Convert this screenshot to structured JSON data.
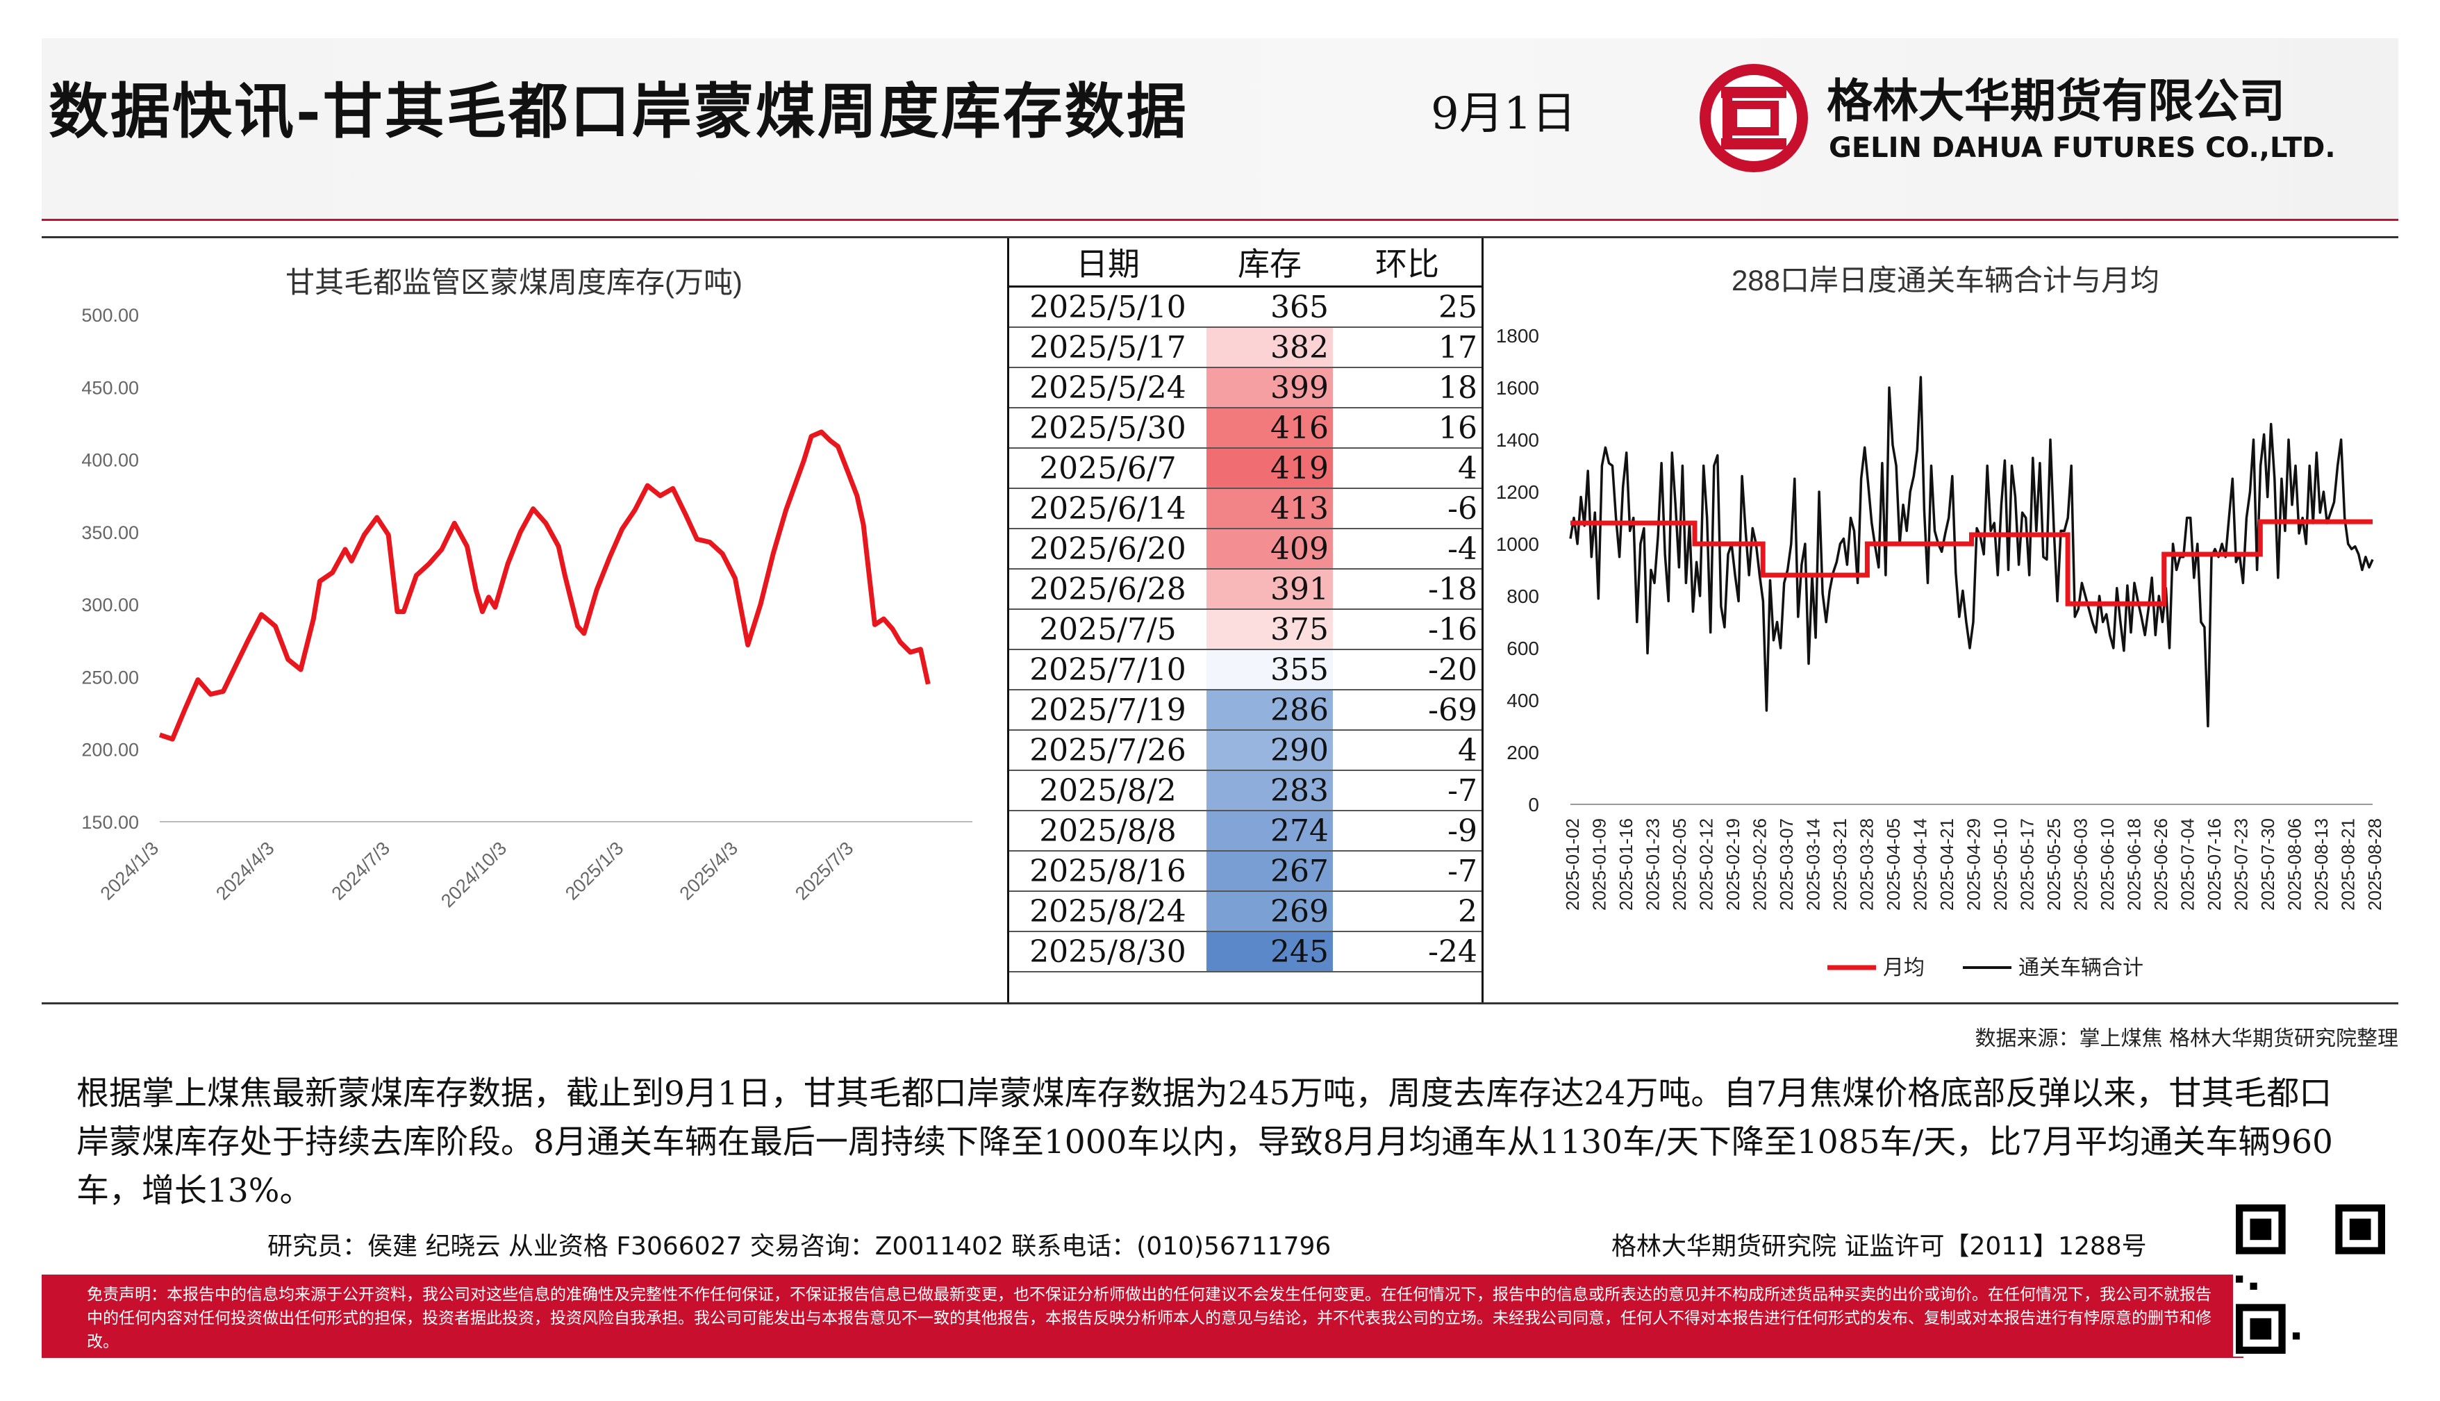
{
  "header": {
    "title": "数据快讯-甘其毛都口岸蒙煤周度库存数据",
    "date": "9月1日",
    "company_cn": "格林大华期货有限公司",
    "company_en": "GELIN DAHUA FUTURES CO.,LTD.",
    "brand_color": "#c8102e"
  },
  "left_chart": {
    "chart_data": {
      "type": "line",
      "title": "甘其毛都监管区蒙煤周度库存(万吨)",
      "y_ticks": [
        "500.00",
        "450.00",
        "400.00",
        "350.00",
        "300.00",
        "250.00",
        "200.00",
        "150.00"
      ],
      "ylim": [
        150,
        500
      ],
      "x_ticks": [
        "2024/1/3",
        "2024/4/3",
        "2024/7/3",
        "2024/10/3",
        "2025/1/3",
        "2025/4/3",
        "2025/7/3"
      ],
      "x_range": [
        "2024-01-03",
        "2025-09-01"
      ],
      "series": [
        {
          "color": "#e8171d",
          "points": [
            [
              "2024-01-03",
              210
            ],
            [
              "2024-01-13",
              207
            ],
            [
              "2024-01-23",
              228
            ],
            [
              "2024-02-02",
              248
            ],
            [
              "2024-02-12",
              238
            ],
            [
              "2024-02-22",
              240
            ],
            [
              "2024-03-03",
              258
            ],
            [
              "2024-03-13",
              276
            ],
            [
              "2024-03-23",
              293
            ],
            [
              "2024-04-03",
              285
            ],
            [
              "2024-04-13",
              262
            ],
            [
              "2024-04-23",
              255
            ],
            [
              "2024-05-03",
              290
            ],
            [
              "2024-05-08",
              316
            ],
            [
              "2024-05-18",
              322
            ],
            [
              "2024-05-28",
              338
            ],
            [
              "2024-06-02",
              330
            ],
            [
              "2024-06-12",
              348
            ],
            [
              "2024-06-22",
              360
            ],
            [
              "2024-07-01",
              348
            ],
            [
              "2024-07-08",
              295
            ],
            [
              "2024-07-13",
              295
            ],
            [
              "2024-07-23",
              320
            ],
            [
              "2024-08-02",
              328
            ],
            [
              "2024-08-12",
              338
            ],
            [
              "2024-08-22",
              356
            ],
            [
              "2024-09-01",
              340
            ],
            [
              "2024-09-08",
              310
            ],
            [
              "2024-09-13",
              295
            ],
            [
              "2024-09-18",
              305
            ],
            [
              "2024-09-23",
              298
            ],
            [
              "2024-10-03",
              328
            ],
            [
              "2024-10-13",
              350
            ],
            [
              "2024-10-23",
              366
            ],
            [
              "2024-11-02",
              356
            ],
            [
              "2024-11-12",
              340
            ],
            [
              "2024-11-17",
              320
            ],
            [
              "2024-11-27",
              285
            ],
            [
              "2024-12-02",
              280
            ],
            [
              "2024-12-12",
              310
            ],
            [
              "2024-12-22",
              332
            ],
            [
              "2025-01-01",
              352
            ],
            [
              "2025-01-11",
              365
            ],
            [
              "2025-01-21",
              382
            ],
            [
              "2025-01-31",
              375
            ],
            [
              "2025-02-10",
              380
            ],
            [
              "2025-02-20",
              362
            ],
            [
              "2025-03-01",
              345
            ],
            [
              "2025-03-11",
              343
            ],
            [
              "2025-03-21",
              335
            ],
            [
              "2025-03-31",
              318
            ],
            [
              "2025-04-10",
              272
            ],
            [
              "2025-04-20",
              300
            ],
            [
              "2025-04-30",
              335
            ],
            [
              "2025-05-10",
              365
            ],
            [
              "2025-05-17",
              382
            ],
            [
              "2025-05-24",
              399
            ],
            [
              "2025-05-30",
              416
            ],
            [
              "2025-06-07",
              419
            ],
            [
              "2025-06-14",
              413
            ],
            [
              "2025-06-20",
              409
            ],
            [
              "2025-06-28",
              391
            ],
            [
              "2025-07-05",
              375
            ],
            [
              "2025-07-10",
              355
            ],
            [
              "2025-07-19",
              286
            ],
            [
              "2025-07-26",
              290
            ],
            [
              "2025-08-02",
              283
            ],
            [
              "2025-08-08",
              274
            ],
            [
              "2025-08-16",
              267
            ],
            [
              "2025-08-24",
              269
            ],
            [
              "2025-08-30",
              245
            ]
          ]
        }
      ]
    }
  },
  "table": {
    "headers": [
      "日期",
      "库存",
      "环比"
    ],
    "rows": [
      {
        "date": "2025/5/10",
        "stock": "365",
        "chg": "25",
        "fill": "#ffffff"
      },
      {
        "date": "2025/5/17",
        "stock": "382",
        "chg": "17",
        "fill": "#fbd3d4"
      },
      {
        "date": "2025/5/24",
        "stock": "399",
        "chg": "18",
        "fill": "#f59fa2"
      },
      {
        "date": "2025/5/30",
        "stock": "416",
        "chg": "16",
        "fill": "#f2797c"
      },
      {
        "date": "2025/6/7",
        "stock": "419",
        "chg": "4",
        "fill": "#f06e71"
      },
      {
        "date": "2025/6/14",
        "stock": "413",
        "chg": "-6",
        "fill": "#f28487"
      },
      {
        "date": "2025/6/20",
        "stock": "409",
        "chg": "-4",
        "fill": "#f38f92"
      },
      {
        "date": "2025/6/28",
        "stock": "391",
        "chg": "-18",
        "fill": "#f8b8ba"
      },
      {
        "date": "2025/7/5",
        "stock": "375",
        "chg": "-16",
        "fill": "#fcdedf"
      },
      {
        "date": "2025/7/10",
        "stock": "355",
        "chg": "-20",
        "fill": "#f3f6fc"
      },
      {
        "date": "2025/7/19",
        "stock": "286",
        "chg": "-69",
        "fill": "#93b1dd"
      },
      {
        "date": "2025/7/26",
        "stock": "290",
        "chg": "4",
        "fill": "#98b5df"
      },
      {
        "date": "2025/8/2",
        "stock": "283",
        "chg": "-7",
        "fill": "#8eadda"
      },
      {
        "date": "2025/8/8",
        "stock": "274",
        "chg": "-9",
        "fill": "#82a4d6"
      },
      {
        "date": "2025/8/16",
        "stock": "267",
        "chg": "-7",
        "fill": "#799ed3"
      },
      {
        "date": "2025/8/24",
        "stock": "269",
        "chg": "2",
        "fill": "#7ba0d4"
      },
      {
        "date": "2025/8/30",
        "stock": "245",
        "chg": "-24",
        "fill": "#5b88c8"
      }
    ]
  },
  "right_chart": {
    "chart_data": {
      "type": "line",
      "title": "288口岸日度通关车辆合计与月均",
      "y_ticks": [
        "1800",
        "1600",
        "1400",
        "1200",
        "1000",
        "800",
        "600",
        "400",
        "200",
        "0"
      ],
      "ylim": [
        0,
        1800
      ],
      "x_ticks": [
        "2025-01-02",
        "2025-01-09",
        "2025-01-16",
        "2025-01-23",
        "2025-02-05",
        "2025-02-12",
        "2025-02-19",
        "2025-02-26",
        "2025-03-07",
        "2025-03-14",
        "2025-03-21",
        "2025-03-28",
        "2025-04-05",
        "2025-04-14",
        "2025-04-21",
        "2025-04-29",
        "2025-05-10",
        "2025-05-17",
        "2025-05-25",
        "2025-06-03",
        "2025-06-10",
        "2025-06-18",
        "2025-06-26",
        "2025-07-04",
        "2025-07-16",
        "2025-07-23",
        "2025-07-30",
        "2025-08-06",
        "2025-08-13",
        "2025-08-21",
        "2025-08-28"
      ],
      "legend": [
        "月均",
        "通关车辆合计"
      ],
      "legend_position": "bottom",
      "monthly_avg": {
        "color": "#e8171d",
        "segments": [
          [
            0,
            0.155,
            1080
          ],
          [
            0.155,
            0.24,
            1000
          ],
          [
            0.24,
            0.37,
            880
          ],
          [
            0.37,
            0.5,
            1000
          ],
          [
            0.5,
            0.62,
            1035
          ],
          [
            0.62,
            0.74,
            770
          ],
          [
            0.74,
            0.86,
            960
          ],
          [
            0.86,
            1.0,
            1085
          ]
        ]
      },
      "daily": {
        "color": "#111111",
        "values": [
          1020,
          1100,
          1000,
          1180,
          1070,
          1280,
          950,
          1120,
          790,
          1300,
          1370,
          1310,
          1300,
          1100,
          950,
          1220,
          1350,
          1050,
          1100,
          700,
          1000,
          1060,
          580,
          900,
          850,
          1030,
          1310,
          960,
          780,
          1350,
          1150,
          910,
          1300,
          850,
          1080,
          740,
          930,
          800,
          1300,
          1100,
          660,
          1300,
          1340,
          760,
          680,
          960,
          1000,
          880,
          780,
          1260,
          1050,
          880,
          1060,
          1000,
          880,
          780,
          360,
          860,
          630,
          700,
          600,
          850,
          900,
          1000,
          1250,
          720,
          920,
          1000,
          540,
          880,
          640,
          1200,
          810,
          700,
          820,
          890,
          930,
          1000,
          1020,
          920,
          1100,
          1050,
          850,
          1250,
          1370,
          1230,
          1080,
          990,
          910,
          1310,
          880,
          1600,
          1380,
          1300,
          1000,
          1150,
          1050,
          1200,
          1260,
          1360,
          1640,
          1130,
          850,
          1300,
          1050,
          1000,
          970,
          1040,
          1100,
          1260,
          890,
          720,
          820,
          700,
          600,
          700,
          1060,
          1030,
          960,
          1300,
          1050,
          1080,
          880,
          1150,
          1320,
          900,
          1300,
          1180,
          920,
          1120,
          1100,
          880,
          1330,
          1050,
          1310,
          950,
          940,
          1400,
          1060,
          780,
          1050,
          1050,
          1100,
          1300,
          720,
          750,
          850,
          800,
          750,
          700,
          660,
          800,
          700,
          730,
          650,
          600,
          830,
          700,
          590,
          840,
          660,
          850,
          780,
          720,
          650,
          750,
          870,
          650,
          800,
          700,
          830,
          600,
          1000,
          900,
          950,
          950,
          1100,
          1100,
          870,
          1000,
          700,
          680,
          300,
          950,
          980,
          950,
          1000,
          950,
          1100,
          1250,
          930,
          960,
          850,
          1100,
          1200,
          1400,
          900,
          1300,
          1420,
          1180,
          1460,
          1250,
          870,
          1250,
          1050,
          1400,
          1150,
          1300,
          1040,
          1100,
          1000,
          1300,
          1080,
          1350,
          1120,
          1200,
          1080,
          1120,
          1160,
          1300,
          1400,
          1100,
          1000,
          980,
          990,
          960,
          900,
          950,
          910,
          940
        ]
      }
    }
  },
  "source": "数据来源：掌上煤焦 格林大华期货研究院整理",
  "summary": "根据掌上煤焦最新蒙煤库存数据，截止到9月1日，甘其毛都口岸蒙煤库存数据为245万吨，周度去库存达24万吨。自7月焦煤价格底部反弹以来，甘其毛都口岸蒙煤库存处于持续去库阶段。8月通关车辆在最后一周持续下降至1000车以内，导致8月月均通车从1130车/天下降至1085车/天，比7月平均通关车辆960车，增长13%。",
  "footer": {
    "contact": "研究员：侯建 纪晓云    从业资格 F3066027    交易咨询：Z0011402    联系电话：(010)56711796",
    "institute": "格林大华期货研究院  证监许可【2011】1288号",
    "disclaimer": "免责声明：本报告中的信息均来源于公开资料，我公司对这些信息的准确性及完整性不作任何保证，不保证报告信息已做最新变更，也不保证分析师做出的任何建议不会发生任何变更。在任何情况下，报告中的信息或所表达的意见并不构成所述货品种买卖的出价或询价。在任何情况下，我公司不就报告中的任何内容对任何投资做出任何形式的担保，投资者据此投资，投资风险自我承担。我公司可能发出与本报告意见不一致的其他报告，本报告反映分析师本人的意见与结论，并不代表我公司的立场。未经我公司同意，任何人不得对本报告进行任何形式的发布、复制或对本报告进行有悖原意的删节和修改。"
  }
}
